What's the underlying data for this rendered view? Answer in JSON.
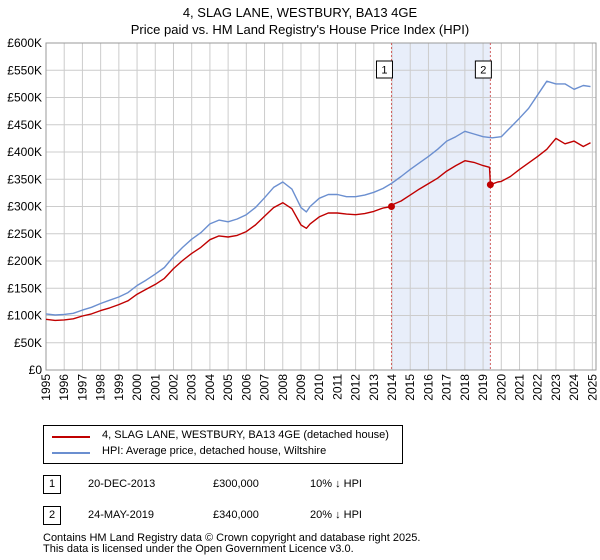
{
  "chart_data": {
    "type": "line",
    "title": "4, SLAG LANE, WESTBURY, BA13 4GE",
    "subtitle": "Price paid vs. HM Land Registry's House Price Index (HPI)",
    "xlabel": "",
    "ylabel": "",
    "xlim": [
      1995,
      2025.2
    ],
    "ylim": [
      0,
      600000
    ],
    "x_ticks": [
      "1995",
      "1996",
      "1997",
      "1998",
      "1999",
      "2000",
      "2001",
      "2002",
      "2003",
      "2004",
      "2005",
      "2006",
      "2007",
      "2008",
      "2009",
      "2010",
      "2011",
      "2012",
      "2013",
      "2014",
      "2015",
      "2016",
      "2017",
      "2018",
      "2019",
      "2020",
      "2021",
      "2022",
      "2023",
      "2024",
      "2025"
    ],
    "y_ticks": [
      {
        "value": 0,
        "label": "£0"
      },
      {
        "value": 50000,
        "label": "£50K"
      },
      {
        "value": 100000,
        "label": "£100K"
      },
      {
        "value": 150000,
        "label": "£150K"
      },
      {
        "value": 200000,
        "label": "£200K"
      },
      {
        "value": 250000,
        "label": "£250K"
      },
      {
        "value": 300000,
        "label": "£300K"
      },
      {
        "value": 350000,
        "label": "£350K"
      },
      {
        "value": 400000,
        "label": "£400K"
      },
      {
        "value": 450000,
        "label": "£450K"
      },
      {
        "value": 500000,
        "label": "£500K"
      },
      {
        "value": 550000,
        "label": "£550K"
      },
      {
        "value": 600000,
        "label": "£600K"
      }
    ],
    "grid": true,
    "shaded_region": {
      "from": 2013.97,
      "to": 2019.4
    },
    "series": [
      {
        "name": "HPI: Average price, detached house, Wiltshire",
        "color": "#6b8fd0",
        "x": [
          1995,
          1995.5,
          1996,
          1996.5,
          1997,
          1997.5,
          1998,
          1998.5,
          1999,
          1999.5,
          2000,
          2000.5,
          2001,
          2001.5,
          2002,
          2002.5,
          2003,
          2003.5,
          2004,
          2004.5,
          2005,
          2005.5,
          2006,
          2006.5,
          2007,
          2007.5,
          2008,
          2008.5,
          2009,
          2009.3,
          2009.5,
          2010,
          2010.5,
          2011,
          2011.5,
          2012,
          2012.5,
          2013,
          2013.5,
          2014,
          2014.5,
          2015,
          2015.5,
          2016,
          2016.5,
          2017,
          2017.5,
          2018,
          2018.5,
          2019,
          2019.5,
          2020,
          2020.5,
          2021,
          2021.5,
          2022,
          2022.5,
          2023,
          2023.5,
          2024,
          2024.5,
          2024.9
        ],
        "values": [
          103000,
          101000,
          102000,
          104000,
          110000,
          115000,
          122000,
          128000,
          134000,
          142000,
          155000,
          165000,
          176000,
          188000,
          208000,
          225000,
          240000,
          252000,
          268000,
          275000,
          272000,
          277000,
          285000,
          298000,
          316000,
          335000,
          345000,
          332000,
          298000,
          290000,
          300000,
          315000,
          322000,
          322000,
          318000,
          318000,
          321000,
          326000,
          333000,
          343000,
          355000,
          368000,
          380000,
          392000,
          405000,
          420000,
          428000,
          438000,
          433000,
          428000,
          426000,
          428000,
          445000,
          462000,
          480000,
          505000,
          530000,
          525000,
          525000,
          515000,
          522000,
          520000
        ]
      },
      {
        "name": "4, SLAG LANE, WESTBURY, BA13 4GE (detached house)",
        "color": "#c00000",
        "x": [
          1995,
          1995.5,
          1996,
          1996.5,
          1997,
          1997.5,
          1998,
          1998.5,
          1999,
          1999.5,
          2000,
          2000.5,
          2001,
          2001.5,
          2002,
          2002.5,
          2003,
          2003.5,
          2004,
          2004.5,
          2005,
          2005.5,
          2006,
          2006.5,
          2007,
          2007.5,
          2008,
          2008.5,
          2009,
          2009.3,
          2009.5,
          2010,
          2010.5,
          2011,
          2011.5,
          2012,
          2012.5,
          2013,
          2013.5,
          2013.97,
          2014,
          2014.5,
          2015,
          2015.5,
          2016,
          2016.5,
          2017,
          2017.5,
          2018,
          2018.5,
          2019,
          2019.35,
          2019.4,
          2019.8,
          2020,
          2020.5,
          2021,
          2021.5,
          2022,
          2022.5,
          2023,
          2023.5,
          2024,
          2024.5,
          2024.9
        ],
        "values": [
          93000,
          91000,
          92000,
          94000,
          99000,
          103000,
          109000,
          114000,
          120000,
          127000,
          139000,
          148000,
          157000,
          168000,
          186000,
          201000,
          214000,
          225000,
          239000,
          246000,
          244000,
          247000,
          254000,
          266000,
          282000,
          298000,
          307000,
          296000,
          266000,
          260000,
          268000,
          281000,
          288000,
          288000,
          286000,
          285000,
          287000,
          291000,
          297000,
          300000,
          303000,
          310000,
          321000,
          332000,
          342000,
          352000,
          365000,
          375000,
          384000,
          381000,
          375000,
          372000,
          340000,
          345000,
          346000,
          355000,
          368000,
          380000,
          392000,
          405000,
          425000,
          415000,
          420000,
          410000,
          417000
        ]
      }
    ],
    "annotations": [
      {
        "label": "1",
        "x": 2013.97,
        "value": 300000
      },
      {
        "label": "2",
        "x": 2019.4,
        "value": 340000
      }
    ]
  },
  "legend": {
    "property_label": "4, SLAG LANE, WESTBURY, BA13 4GE (detached house)",
    "hpi_label": "HPI: Average price, detached house, Wiltshire"
  },
  "transactions": [
    {
      "num": "1",
      "date": "20-DEC-2013",
      "price": "£300,000",
      "hpi_diff": "10% ↓ HPI"
    },
    {
      "num": "2",
      "date": "24-MAY-2019",
      "price": "£340,000",
      "hpi_diff": "20% ↓ HPI"
    }
  ],
  "footer": {
    "line1": "Contains HM Land Registry data © Crown copyright and database right 2025.",
    "line2": "This data is licensed under the Open Government Licence v3.0."
  },
  "colors": {
    "property": "#c00000",
    "hpi": "#6b8fd0",
    "shade": "#e8eefa",
    "grid": "#cccccc",
    "marker": "#c00000",
    "vline": "#d06060"
  }
}
